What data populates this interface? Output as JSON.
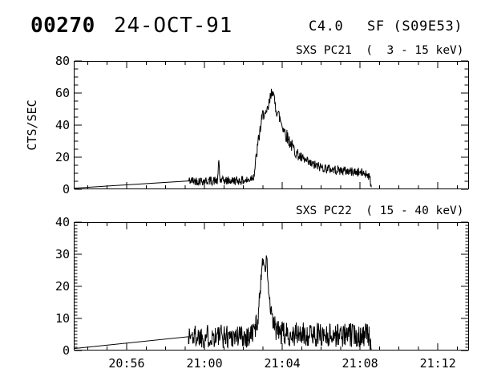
{
  "colors": {
    "foreground": "#000000",
    "background": "#ffffff"
  },
  "header": {
    "flare_number": "00270",
    "date": "24-OCT-91",
    "goes_class": "C4.0",
    "flare_type_location": "SF (S09E53)"
  },
  "x_axis": {
    "range_minutes_after_2000": [
      53.28,
      73.6
    ],
    "major_tick_every_minutes": 4,
    "minor_tick_every_minutes": 1,
    "tick_labels": [
      {
        "minute": 56,
        "label": "20:56"
      },
      {
        "minute": 60,
        "label": "21:00"
      },
      {
        "minute": 64,
        "label": "21:04"
      },
      {
        "minute": 68,
        "label": "21:08"
      },
      {
        "minute": 72,
        "label": "21:12"
      }
    ]
  },
  "chart_data": [
    {
      "type": "line",
      "title": "SXS PC21  (  3 - 15 keV)",
      "ylabel": "CTS/SEC",
      "ylim": [
        0,
        80
      ],
      "ytick_values": [
        80,
        60,
        40,
        20,
        0
      ],
      "ytick_labels": [
        "80",
        "60",
        "40",
        "20",
        "0"
      ],
      "ytick_minor_step": 5,
      "pre_gap_line": [
        [
          53.28,
          0.7
        ],
        [
          59.18,
          5.2
        ]
      ],
      "noisy_segment": {
        "t_start": 59.18,
        "t_end": 68.58,
        "dt": 0.02,
        "seed": 42,
        "mean_profile": [
          [
            59.18,
            5.3
          ],
          [
            60.68,
            5.3
          ],
          [
            60.74,
            18.5
          ],
          [
            60.8,
            5.3
          ],
          [
            62.25,
            5.5
          ],
          [
            62.55,
            9
          ],
          [
            62.75,
            28
          ],
          [
            62.9,
            40
          ],
          [
            63.0,
            46
          ],
          [
            63.08,
            49
          ],
          [
            63.15,
            44
          ],
          [
            63.3,
            52
          ],
          [
            63.42,
            58
          ],
          [
            63.5,
            64
          ],
          [
            63.58,
            55
          ],
          [
            63.7,
            50
          ],
          [
            63.85,
            45
          ],
          [
            64.0,
            40
          ],
          [
            64.2,
            34
          ],
          [
            64.45,
            28
          ],
          [
            64.7,
            23
          ],
          [
            65.0,
            19
          ],
          [
            65.4,
            16
          ],
          [
            65.9,
            14
          ],
          [
            66.5,
            12.5
          ],
          [
            67.2,
            11.5
          ],
          [
            68.0,
            10.5
          ],
          [
            68.4,
            9.5
          ],
          [
            68.52,
            6
          ],
          [
            68.58,
            1
          ]
        ],
        "noise_amp_profile": [
          [
            59.18,
            2.8
          ],
          [
            62.4,
            2.8
          ],
          [
            62.7,
            4.5
          ],
          [
            64.3,
            4.5
          ],
          [
            64.8,
            3.5
          ],
          [
            66.0,
            3.0
          ],
          [
            68.58,
            2.8
          ]
        ]
      }
    },
    {
      "type": "line",
      "title": "SXS PC22  ( 15 - 40 keV)",
      "ylabel": "",
      "ylim": [
        0,
        40
      ],
      "ytick_values": [
        40,
        30,
        20,
        10,
        0
      ],
      "ytick_labels": [
        "40",
        "30",
        "20",
        "10",
        "0"
      ],
      "ytick_minor_step": 1,
      "pre_gap_line": [
        [
          53.28,
          0.6
        ],
        [
          59.18,
          4.3
        ]
      ],
      "noisy_segment": {
        "t_start": 59.18,
        "t_end": 68.58,
        "dt": 0.02,
        "seed": 1337,
        "mean_profile": [
          [
            59.18,
            4.5
          ],
          [
            62.3,
            4.5
          ],
          [
            62.55,
            6
          ],
          [
            62.75,
            10
          ],
          [
            62.88,
            20
          ],
          [
            62.96,
            27
          ],
          [
            63.03,
            30
          ],
          [
            63.1,
            24
          ],
          [
            63.2,
            29
          ],
          [
            63.28,
            20
          ],
          [
            63.4,
            12
          ],
          [
            63.55,
            8
          ],
          [
            63.75,
            6
          ],
          [
            64.1,
            5
          ],
          [
            68.4,
            4.8
          ],
          [
            68.52,
            3
          ],
          [
            68.58,
            0.8
          ]
        ],
        "noise_amp_profile": [
          [
            59.18,
            3.8
          ],
          [
            62.6,
            3.8
          ],
          [
            62.85,
            2.5
          ],
          [
            63.35,
            2.5
          ],
          [
            63.6,
            3.8
          ],
          [
            68.58,
            3.8
          ]
        ]
      }
    }
  ]
}
